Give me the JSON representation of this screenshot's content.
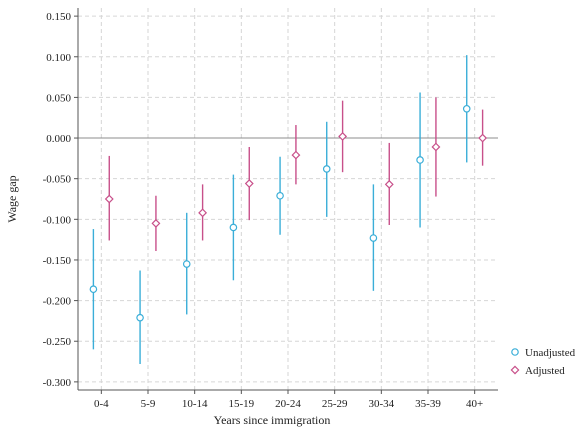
{
  "chart_data": {
    "type": "scatter",
    "xlabel": "Years since immigration",
    "ylabel": "Wage gap",
    "categories": [
      "0-4",
      "5-9",
      "10-14",
      "15-19",
      "20-24",
      "25-29",
      "30-34",
      "35-39",
      "40+"
    ],
    "ylim": [
      -0.31,
      0.16
    ],
    "yticks": [
      0.15,
      0.1,
      0.05,
      0.0,
      -0.05,
      -0.1,
      -0.15,
      -0.2,
      -0.25,
      -0.3
    ],
    "ytick_labels": [
      "0.150",
      "0.100",
      "0.050",
      "0.000",
      "-0.050",
      "-0.100",
      "-0.150",
      "-0.200",
      "-0.250",
      "-0.300"
    ],
    "grid": true,
    "reference_line": 0,
    "legend_position": "bottom-right",
    "series": [
      {
        "name": "Unadjusted",
        "marker": "circle",
        "color": "#3aaed8",
        "values": [
          -0.186,
          -0.221,
          -0.155,
          -0.11,
          -0.071,
          -0.038,
          -0.123,
          -0.027,
          0.036
        ],
        "ci_low": [
          -0.26,
          -0.278,
          -0.217,
          -0.175,
          -0.119,
          -0.097,
          -0.188,
          -0.11,
          -0.03
        ],
        "ci_high": [
          -0.112,
          -0.163,
          -0.092,
          -0.045,
          -0.023,
          0.02,
          -0.057,
          0.056,
          0.102
        ]
      },
      {
        "name": "Adjusted",
        "marker": "diamond",
        "color": "#c8508a",
        "values": [
          -0.075,
          -0.105,
          -0.092,
          -0.056,
          -0.021,
          0.002,
          -0.057,
          -0.011,
          0.0
        ],
        "ci_low": [
          -0.126,
          -0.139,
          -0.126,
          -0.101,
          -0.057,
          -0.042,
          -0.107,
          -0.072,
          -0.034
        ],
        "ci_high": [
          -0.022,
          -0.071,
          -0.057,
          -0.011,
          0.016,
          0.046,
          -0.006,
          0.05,
          0.035
        ]
      }
    ]
  }
}
